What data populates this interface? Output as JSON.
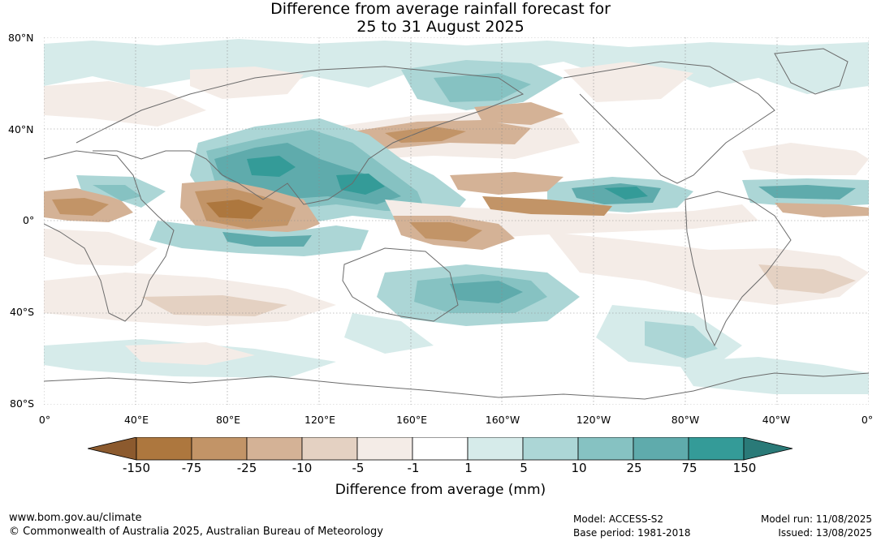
{
  "title": {
    "line1": "Difference from average rainfall forecast for",
    "line2": "25 to 31 August 2025"
  },
  "map": {
    "lat_labels": [
      "80°N",
      "40°N",
      "0°",
      "40°S",
      "80°S"
    ],
    "lon_labels": [
      "0°",
      "40°E",
      "80°E",
      "120°E",
      "160°E",
      "160°W",
      "120°W",
      "80°W",
      "40°W",
      "0°"
    ]
  },
  "colorbar": {
    "tick_labels": [
      "-150",
      "-75",
      "-25",
      "-10",
      "-5",
      "-1",
      "1",
      "5",
      "10",
      "25",
      "75",
      "150"
    ],
    "colors": [
      "#8c5a2e",
      "#ad773e",
      "#c29467",
      "#d4b296",
      "#e4d1c2",
      "#f4ece7",
      "#ffffff",
      "#d6ebea",
      "#acd6d6",
      "#86c2c2",
      "#5fabac",
      "#349b98",
      "#2a7a78"
    ],
    "label": "Difference from average (mm)"
  },
  "footer": {
    "website": "www.bom.gov.au/climate",
    "copyright": "© Commonwealth of Australia 2025, Australian Bureau of Meteorology",
    "model": "Model: ACCESS-S2",
    "base_period": "Base period: 1981-2018",
    "model_run": "Model run: 11/08/2025",
    "issued": "Issued: 13/08/2025"
  }
}
